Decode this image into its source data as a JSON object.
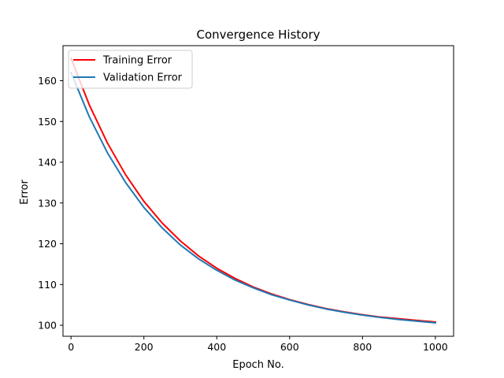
{
  "chart_data": {
    "type": "line",
    "title": "Convergence History",
    "xlabel": "Epoch No.",
    "ylabel": "Error",
    "xlim": [
      -22,
      1050
    ],
    "ylim": [
      97.3,
      168.6
    ],
    "xticks": [
      0,
      200,
      400,
      600,
      800,
      1000
    ],
    "yticks": [
      100,
      110,
      120,
      130,
      140,
      150,
      160
    ],
    "grid": false,
    "legend_position": "upper-left",
    "series": [
      {
        "name": "Training Error",
        "color": "#ff0000",
        "x": [
          0,
          50,
          100,
          150,
          200,
          250,
          300,
          350,
          400,
          450,
          500,
          550,
          600,
          650,
          700,
          750,
          800,
          850,
          900,
          950,
          1000
        ],
        "y": [
          165.5,
          154.1,
          144.7,
          136.9,
          130.4,
          125.1,
          120.7,
          117.0,
          114.0,
          111.5,
          109.4,
          107.7,
          106.3,
          105.1,
          104.1,
          103.3,
          102.6,
          102.0,
          101.6,
          101.2,
          100.8
        ]
      },
      {
        "name": "Validation Error",
        "color": "#1f77b4",
        "x": [
          0,
          50,
          100,
          150,
          200,
          250,
          300,
          350,
          400,
          450,
          500,
          550,
          600,
          650,
          700,
          750,
          800,
          850,
          900,
          950,
          1000
        ],
        "y": [
          162.0,
          151.2,
          142.3,
          135.0,
          128.9,
          123.9,
          119.7,
          116.3,
          113.5,
          111.1,
          109.2,
          107.5,
          106.2,
          105.0,
          104.0,
          103.2,
          102.5,
          101.9,
          101.4,
          101.0,
          100.6
        ]
      }
    ]
  }
}
